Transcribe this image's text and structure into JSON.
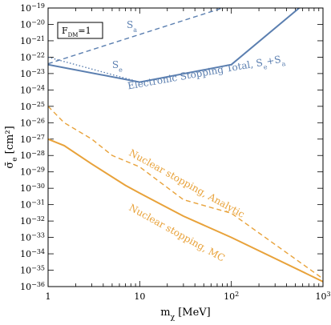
{
  "chart_data": {
    "type": "line",
    "title": "",
    "xlabel": "m_χ [MeV]",
    "ylabel": "σ̄_e [cm²]",
    "xscale": "log",
    "yscale": "log",
    "xlim": [
      1,
      1000
    ],
    "ylim": [
      1e-36,
      1e-19
    ],
    "x_ticks": [
      1,
      10,
      100,
      1000
    ],
    "x_tick_labels": [
      "1",
      "10",
      "10^2",
      "10^3"
    ],
    "y_tick_exponents": [
      -36,
      -35,
      -34,
      -33,
      -32,
      -31,
      -30,
      -29,
      -28,
      -27,
      -26,
      -25,
      -24,
      -23,
      -22,
      -21,
      -20,
      -19
    ],
    "legend_box": "F_DM=1",
    "legend_position": "top-left",
    "colors": {
      "blue": "#5b7fb0",
      "orange": "#e8a23a"
    },
    "series": [
      {
        "name": "S_a",
        "color": "#5b7fb0",
        "style": "dashed",
        "x": [
          1,
          80
        ],
        "y": [
          4e-23,
          1e-19
        ]
      },
      {
        "name": "S_e",
        "color": "#5b7fb0",
        "style": "dotted",
        "x": [
          1,
          10
        ],
        "y": [
          1e-22,
          3e-24
        ]
      },
      {
        "name": "Electronic Stopping Total, S_e+S_a",
        "color": "#5b7fb0",
        "style": "solid",
        "x": [
          1,
          10,
          100,
          550
        ],
        "y": [
          3.5e-23,
          3e-24,
          3.5e-23,
          1e-19
        ]
      },
      {
        "name": "Nuclear stopping, Analytic",
        "color": "#e8a23a",
        "style": "dashed",
        "x": [
          1,
          1.5,
          3,
          5,
          10,
          30,
          100,
          1000
        ],
        "y": [
          1e-25,
          1e-26,
          1e-27,
          1e-28,
          2e-29,
          2e-31,
          3e-32,
          3e-36
        ]
      },
      {
        "name": "Nuclear stopping, MC",
        "color": "#e8a23a",
        "style": "solid",
        "x": [
          1,
          1.5,
          3,
          7,
          10,
          30,
          100,
          1000
        ],
        "y": [
          1e-27,
          4e-28,
          3e-29,
          1.5e-30,
          5e-31,
          2e-32,
          1e-33,
          2e-36
        ]
      }
    ],
    "annotations": [
      {
        "text": "S_a",
        "color": "#5b7fb0"
      },
      {
        "text": "S_e",
        "color": "#5b7fb0"
      },
      {
        "text": "Electronic Stopping Total, S_e+S_a",
        "color": "#5b7fb0"
      },
      {
        "text": "Nuclear stopping, Analytic",
        "color": "#e8a23a"
      },
      {
        "text": "Nuclear stopping, MC",
        "color": "#e8a23a"
      }
    ]
  }
}
